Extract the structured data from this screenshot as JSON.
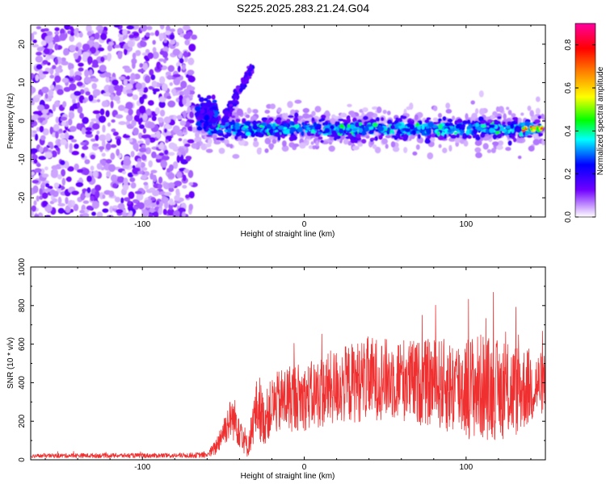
{
  "title": "S225.2025.283.21.24.G04",
  "colors": {
    "snr_line": "#f03030",
    "frame": "#000000"
  },
  "chart_data": [
    {
      "type": "heatmap",
      "xlabel": "Height of straight line (km)",
      "ylabel": "Frequency (Hz)",
      "xlim": [
        -169,
        149
      ],
      "ylim": [
        -25,
        25
      ],
      "xticks": [
        -100,
        0,
        100
      ],
      "xtick_labels": [
        "-100",
        "0",
        "100"
      ],
      "yticks": [
        -20,
        -10,
        0,
        10,
        20
      ],
      "ytick_labels": [
        "-20",
        "-10",
        "0",
        "10",
        "20"
      ],
      "colorbar": {
        "label": "Normalized spectral amplitude",
        "range": [
          0.0,
          0.9
        ],
        "ticks": [
          0.0,
          0.2,
          0.4,
          0.6,
          0.8
        ],
        "tick_labels": [
          "0.0",
          "0.2",
          "0.4",
          "0.6",
          "0.8"
        ]
      },
      "features": {
        "noise_region_x": [
          -169,
          -68
        ],
        "feature_start_x": -68,
        "main_band_frequency_hz": -2,
        "main_band_halfwidth_hz": 3,
        "diagonal_streak": {
          "x": [
            -50,
            -32
          ],
          "y": [
            0,
            14
          ]
        },
        "peak_near_x": 140
      }
    },
    {
      "type": "line",
      "xlabel": "Height of straight line (km)",
      "ylabel": "SNR (10 * v/v)",
      "xlim": [
        -169,
        149
      ],
      "ylim": [
        0,
        1000
      ],
      "xticks": [
        -100,
        0,
        100
      ],
      "xtick_labels": [
        "-100",
        "0",
        "100"
      ],
      "yticks": [
        0,
        200,
        400,
        600,
        800,
        1000
      ],
      "ytick_labels": [
        "0",
        "200",
        "400",
        "600",
        "800",
        "1000"
      ],
      "series": [
        {
          "name": "SNR",
          "x": [
            -169,
            -140,
            -110,
            -80,
            -60,
            -55,
            -50,
            -45,
            -40,
            -35,
            -30,
            -28,
            -25,
            -20,
            -15,
            -10,
            -5,
            0,
            10,
            20,
            30,
            40,
            50,
            60,
            70,
            80,
            90,
            100,
            110,
            120,
            130,
            140,
            149
          ],
          "mean": [
            20,
            22,
            22,
            22,
            25,
            60,
            150,
            220,
            180,
            60,
            250,
            280,
            200,
            280,
            300,
            320,
            330,
            320,
            350,
            380,
            400,
            420,
            420,
            420,
            400,
            400,
            380,
            380,
            380,
            360,
            360,
            380,
            400
          ],
          "spread": [
            10,
            12,
            12,
            12,
            15,
            40,
            80,
            110,
            120,
            50,
            150,
            180,
            130,
            150,
            170,
            180,
            180,
            170,
            190,
            200,
            210,
            220,
            210,
            220,
            220,
            230,
            250,
            270,
            280,
            260,
            250,
            200,
            150
          ]
        }
      ]
    }
  ]
}
